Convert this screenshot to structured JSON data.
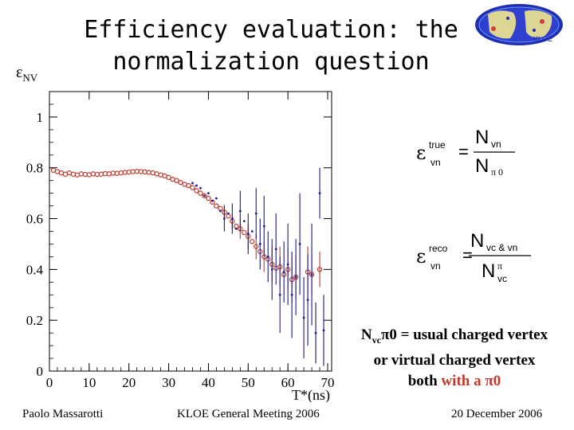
{
  "slide": {
    "title_line1": "Efficiency evaluation: the",
    "title_line2": "normalization question",
    "y_symbol": "ε",
    "y_sub": "NV",
    "logo_text": "KLOE"
  },
  "equations": {
    "true_lhs": "ε",
    "true_sup": "true",
    "true_sub": "vn",
    "true_num": "N",
    "true_num_sub": "vn",
    "true_den": "N",
    "true_den_sub": "π 0",
    "reco_lhs": "ε",
    "reco_sup": "reco",
    "reco_sub": "vn",
    "reco_num": "N",
    "reco_num_sub": "vc & vn",
    "reco_den": "N",
    "reco_den_sup": "π",
    "reco_den_sub": "vc",
    "equals": "="
  },
  "note": {
    "n": "N",
    "n_sub": "vc",
    "pi0": "π0",
    "line1_rest": " = usual charged vertex",
    "line2": "or virtual charged vertex",
    "line3_a": "both ",
    "line3_b": "with a π0"
  },
  "footer": {
    "left": "Paolo Massarotti",
    "center": "KLOE General Meeting 2006",
    "right": "20 December 2006"
  },
  "chart_data": {
    "type": "scatter",
    "xlabel": "T*(ns)",
    "xlim": [
      0,
      71
    ],
    "ylim": [
      0,
      1.1
    ],
    "x_ticks": [
      0,
      10,
      20,
      30,
      40,
      50,
      60,
      70
    ],
    "y_ticks": [
      0,
      0.2,
      0.4,
      0.6,
      0.8,
      1
    ],
    "x_tick_labels": [
      "0",
      "10",
      "20",
      "30",
      "40",
      "50",
      "60",
      "70"
    ],
    "y_tick_labels": [
      "0",
      "0.2",
      "0.4",
      "0.6",
      "0.8",
      "1"
    ],
    "series": [
      {
        "marker": "open-circle",
        "color": "#c0392b",
        "points": [
          [
            1,
            0.79
          ],
          [
            2,
            0.785
          ],
          [
            3,
            0.78
          ],
          [
            4,
            0.775
          ],
          [
            5,
            0.78
          ],
          [
            6,
            0.775
          ],
          [
            7,
            0.772
          ],
          [
            8,
            0.776
          ],
          [
            9,
            0.774
          ],
          [
            10,
            0.773
          ],
          [
            11,
            0.776
          ],
          [
            12,
            0.774
          ],
          [
            13,
            0.775
          ],
          [
            14,
            0.777
          ],
          [
            15,
            0.776
          ],
          [
            16,
            0.779
          ],
          [
            17,
            0.778
          ],
          [
            18,
            0.78
          ],
          [
            19,
            0.782
          ],
          [
            20,
            0.783
          ],
          [
            21,
            0.785
          ],
          [
            22,
            0.786
          ],
          [
            23,
            0.785
          ],
          [
            24,
            0.784
          ],
          [
            25,
            0.782
          ],
          [
            26,
            0.78
          ],
          [
            27,
            0.776
          ],
          [
            28,
            0.772
          ],
          [
            29,
            0.768
          ],
          [
            30,
            0.762
          ],
          [
            31,
            0.755
          ],
          [
            32,
            0.75
          ],
          [
            33,
            0.742
          ],
          [
            34,
            0.735
          ],
          [
            35,
            0.73
          ],
          [
            36,
            0.722
          ],
          [
            37,
            0.71
          ],
          [
            38,
            0.7
          ],
          [
            39,
            0.69
          ],
          [
            40,
            0.68
          ],
          [
            41,
            0.665
          ],
          [
            42,
            0.65
          ],
          [
            43,
            0.64
          ],
          [
            44,
            0.625
          ],
          [
            45,
            0.61
          ],
          [
            46,
            0.59
          ],
          [
            47,
            0.57
          ],
          [
            48,
            0.56
          ],
          [
            49,
            0.545
          ],
          [
            50,
            0.53
          ],
          [
            51,
            0.51
          ],
          [
            52,
            0.49
          ],
          [
            53,
            0.47
          ],
          [
            54,
            0.45
          ],
          [
            55,
            0.44
          ],
          [
            56,
            0.42
          ],
          [
            57,
            0.405
          ],
          [
            58,
            0.41
          ],
          [
            59,
            0.38
          ],
          [
            60,
            0.4
          ],
          [
            61,
            0.36
          ],
          [
            62,
            0.37
          ],
          [
            65,
            0.39
          ],
          [
            66,
            0.38
          ],
          [
            68,
            0.4
          ]
        ],
        "errors": [
          [
            44,
            0.03
          ],
          [
            46,
            0.03
          ],
          [
            48,
            0.04
          ],
          [
            50,
            0.05
          ],
          [
            52,
            0.05
          ],
          [
            54,
            0.06
          ],
          [
            56,
            0.07
          ],
          [
            58,
            0.08
          ],
          [
            60,
            0.08
          ],
          [
            61,
            0.09
          ],
          [
            62,
            0.09
          ],
          [
            65,
            0.1
          ],
          [
            66,
            0.08
          ],
          [
            68,
            0.07
          ]
        ]
      },
      {
        "marker": "dot",
        "color": "#1a1a8c",
        "points": [
          [
            36,
            0.74
          ],
          [
            37,
            0.73
          ],
          [
            38,
            0.72
          ],
          [
            39,
            0.69
          ],
          [
            40,
            0.7
          ],
          [
            41,
            0.67
          ],
          [
            42,
            0.68
          ],
          [
            43,
            0.63
          ],
          [
            44,
            0.6
          ],
          [
            45,
            0.62
          ],
          [
            46,
            0.6
          ],
          [
            47,
            0.56
          ],
          [
            48,
            0.63
          ],
          [
            49,
            0.59
          ],
          [
            50,
            0.54
          ],
          [
            51,
            0.55
          ],
          [
            52,
            0.62
          ],
          [
            53,
            0.5
          ],
          [
            54,
            0.57
          ],
          [
            55,
            0.45
          ],
          [
            56,
            0.4
          ],
          [
            57,
            0.48
          ],
          [
            58,
            0.3
          ],
          [
            59,
            0.39
          ],
          [
            60,
            0.42
          ],
          [
            61,
            0.3
          ],
          [
            62,
            0.37
          ],
          [
            63,
            0.5
          ],
          [
            64,
            0.21
          ],
          [
            65,
            0.28
          ],
          [
            66,
            0.38
          ],
          [
            67,
            0.15
          ],
          [
            68,
            0.7
          ],
          [
            69,
            0.16
          ]
        ],
        "errors": [
          [
            44,
            0.05
          ],
          [
            46,
            0.06
          ],
          [
            48,
            0.08
          ],
          [
            50,
            0.08
          ],
          [
            52,
            0.1
          ],
          [
            53,
            0.1
          ],
          [
            54,
            0.12
          ],
          [
            55,
            0.1
          ],
          [
            56,
            0.12
          ],
          [
            57,
            0.14
          ],
          [
            58,
            0.15
          ],
          [
            59,
            0.12
          ],
          [
            60,
            0.16
          ],
          [
            61,
            0.17
          ],
          [
            62,
            0.15
          ],
          [
            63,
            0.2
          ],
          [
            64,
            0.16
          ],
          [
            65,
            0.18
          ],
          [
            66,
            0.2
          ],
          [
            67,
            0.12
          ],
          [
            68,
            0.1
          ],
          [
            69,
            0.14
          ]
        ]
      }
    ]
  }
}
